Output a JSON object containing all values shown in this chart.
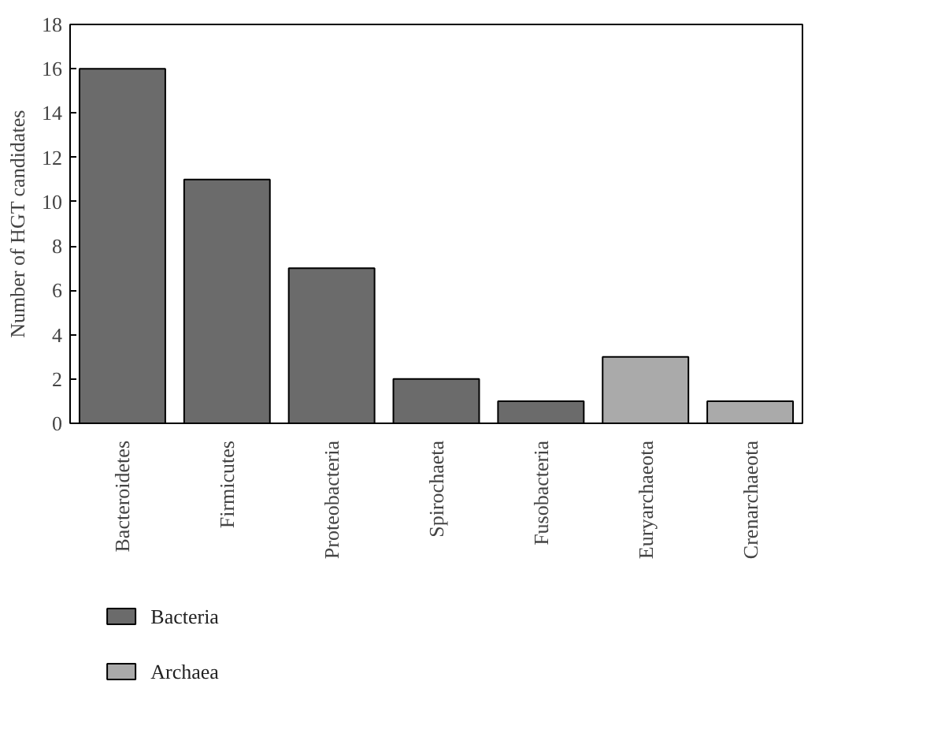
{
  "chart_data": {
    "type": "bar",
    "ylabel": "Number of HGT candidates",
    "categories": [
      "Bacteroidetes",
      "Firmicutes",
      "Proteobacteria",
      "Spirochaeta",
      "Fusobacteria",
      "Euryarchaeota",
      "Crenarchaeota"
    ],
    "series": [
      {
        "name": "Bacteria",
        "color": "#6b6b6b",
        "values": [
          16,
          11,
          7,
          2,
          1,
          null,
          null
        ]
      },
      {
        "name": "Archaea",
        "color": "#aaaaaa",
        "values": [
          null,
          null,
          null,
          null,
          null,
          3,
          1
        ]
      }
    ],
    "ylim": [
      0,
      18
    ],
    "yticks": [
      0,
      2,
      4,
      6,
      8,
      10,
      12,
      14,
      16,
      18
    ],
    "grid": false,
    "legend": "bottom left"
  }
}
